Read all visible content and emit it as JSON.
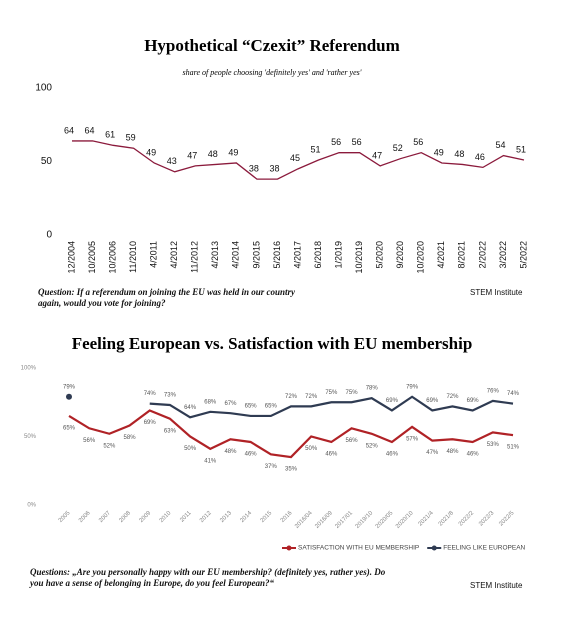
{
  "chart_data": [
    {
      "type": "line",
      "title": "Hypothetical “Czexit” Referendum",
      "subtitle": "share of people choosing 'definitely yes' and 'rather yes'",
      "categories": [
        "12/2004",
        "10/2005",
        "10/2006",
        "11/2010",
        "4/2011",
        "4/2012",
        "11/2012",
        "4/2013",
        "4/2014",
        "9/2015",
        "5/2016",
        "4/2017",
        "6/2018",
        "1/2019",
        "10/2019",
        "5/2020",
        "9/2020",
        "10/2020",
        "4/2021",
        "8/2021",
        "2/2022",
        "3/2022",
        "5/2022"
      ],
      "series": [
        {
          "name": "Czexit",
          "color": "#8b1a3c",
          "values": [
            64,
            64,
            61,
            59,
            49,
            43,
            47,
            48,
            49,
            38,
            38,
            45,
            51,
            56,
            56,
            47,
            52,
            56,
            49,
            48,
            46,
            54,
            51
          ]
        }
      ],
      "ylim": [
        0,
        100
      ],
      "yticks": [
        0,
        50,
        100
      ],
      "grid": false,
      "legend": false,
      "note": "Question: If a referendum on joining the EU was held in our country again, would you vote for joining?",
      "source": "STEM Institute"
    },
    {
      "type": "line",
      "title": "Feeling European vs. Satisfaction with EU membership",
      "categories": [
        "2005",
        "2006",
        "2007",
        "2008",
        "2009",
        "2010",
        "2011",
        "2012",
        "2013",
        "2014",
        "2015",
        "2016",
        "2016/04",
        "2016/09",
        "2017/01",
        "2019/10",
        "2020/05",
        "2020/10",
        "2021/4",
        "2021/8",
        "2022/2",
        "2022/3",
        "2022/5"
      ],
      "series": [
        {
          "name": "SATISFACTION WITH EU MEMBERSHIP",
          "color": "#b02226",
          "values": [
            65,
            56,
            52,
            58,
            69,
            63,
            50,
            41,
            48,
            46,
            37,
            35,
            50,
            46,
            56,
            52,
            46,
            57,
            47,
            48,
            46,
            53,
            51
          ],
          "value_labels": [
            "65%",
            "56%",
            "52%",
            "58%",
            "69%",
            "63%",
            "50%",
            "41%",
            "48%",
            "46%",
            "37%",
            "35%",
            "50%",
            "46%",
            "56%",
            "52%",
            "46%",
            "57%",
            "47%",
            "48%",
            "46%",
            "53%",
            "51%"
          ]
        },
        {
          "name": "FEELING LIKE EUROPEAN",
          "color": "#2f3b52",
          "values": [
            79,
            null,
            null,
            null,
            74,
            73,
            64,
            68,
            67,
            65,
            65,
            72,
            72,
            75,
            75,
            78,
            69,
            79,
            69,
            72,
            69,
            76,
            74
          ],
          "value_labels": [
            "79%",
            null,
            null,
            null,
            "74%",
            "73%",
            "64%",
            "68%",
            "67%",
            "65%",
            "65%",
            "72%",
            "72%",
            "75%",
            "75%",
            "78%",
            "69%",
            "79%",
            "69%",
            "72%",
            "69%",
            "76%",
            "74%"
          ]
        }
      ],
      "ylim": [
        0,
        100
      ],
      "yticks": [
        {
          "value": 0,
          "label": "0%"
        },
        {
          "value": 50,
          "label": "50%"
        },
        {
          "value": 100,
          "label": "100%"
        }
      ],
      "grid": false,
      "legend": "bottom-right",
      "note": "Questions: „Are you personally happy with our EU membership? (definitely yes, rather yes). Do you have a sense of belonging in Europe, do you feel European?“",
      "source": "STEM Institute"
    }
  ]
}
